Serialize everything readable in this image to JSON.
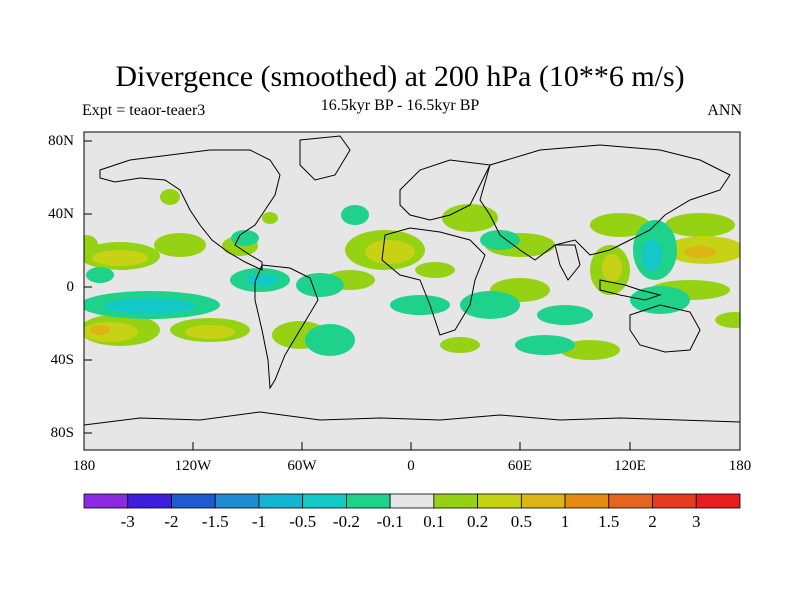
{
  "title": "Divergence (smoothed) at 200 hPa (10**6 m/s)",
  "subtitle_left": "Expt = teaor-teaer3",
  "subtitle_center": "16.5kyr BP - 16.5kyr BP",
  "subtitle_right": "ANN",
  "lat_labels": [
    "80N",
    "40N",
    "0",
    "40S",
    "80S"
  ],
  "lon_labels": [
    "180",
    "120W",
    "60W",
    "0",
    "60E",
    "120E",
    "180"
  ],
  "colorbar": {
    "colors": [
      "#8a2be2",
      "#3c1edc",
      "#1e5ad2",
      "#1e8cd2",
      "#14b4d2",
      "#14c8c8",
      "#1ed28c",
      "#e6e6e6",
      "#96d214",
      "#c8d214",
      "#dcb414",
      "#e68c14",
      "#e6641e",
      "#e63c1e",
      "#e61e1e"
    ],
    "labels": [
      "-3",
      "-2",
      "-1.5",
      "-1",
      "-0.5",
      "-0.2",
      "-0.1",
      "0.1",
      "0.2",
      "0.5",
      "1",
      "1.5",
      "2",
      "3"
    ]
  },
  "map": {
    "background": "#e6e6e6",
    "land_outline": "#000000"
  }
}
